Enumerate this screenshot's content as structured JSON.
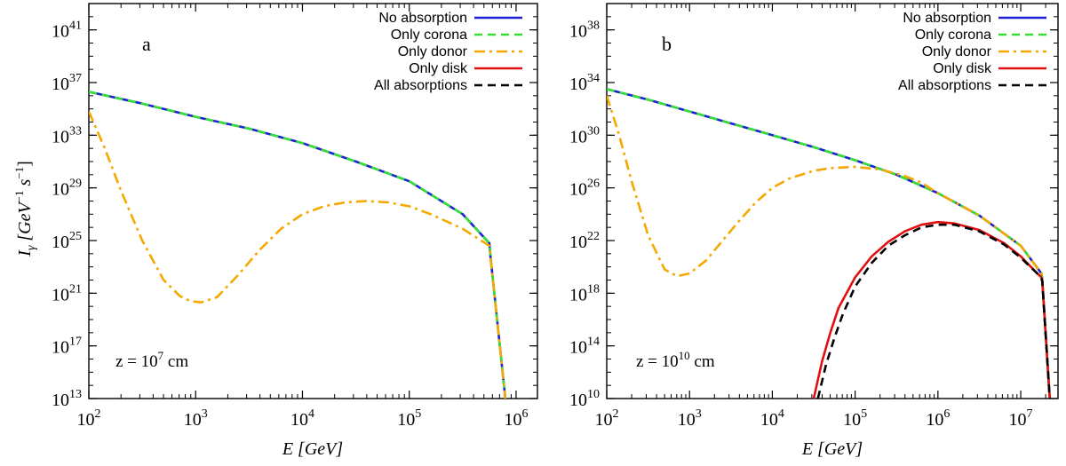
{
  "figure": {
    "ylabel_main": "I",
    "ylabel_sub": "γ",
    "ylabel_units": "[GeV",
    "ylabel_units_exp": "−1",
    "ylabel_s": "s",
    "ylabel_s_exp": "−1",
    "ylabel_close": "]",
    "xlabel_main": "E",
    "xlabel_units": "[GeV]"
  },
  "legend": {
    "items": [
      "No absorption",
      "Only corona",
      "Only donor",
      "Only disk",
      "All absorptions"
    ]
  },
  "colors": {
    "no_absorption": "#1f1fd6",
    "only_corona": "#33e033",
    "only_donor": "#f5a800",
    "only_disk": "#e01010",
    "all_absorptions": "#000000"
  },
  "chart_data": [
    {
      "type": "line",
      "panel_label": "a",
      "annotation": {
        "prefix": "z = 10",
        "exp": "7",
        "unit": " cm"
      },
      "xscale": "log",
      "yscale": "log",
      "xlim_log10": [
        2,
        6.2
      ],
      "ylim_log10": [
        13,
        43
      ],
      "xtick_exponents": [
        "2",
        "3",
        "4",
        "5",
        "6"
      ],
      "ytick_exponents": [
        "13",
        "17",
        "21",
        "25",
        "29",
        "33",
        "37",
        "41"
      ],
      "legend_position": "top-right",
      "series": [
        {
          "name": "No absorption",
          "color": "#1f1fd6",
          "dash": "solid",
          "x_log10": [
            2.0,
            2.5,
            3.0,
            3.5,
            4.0,
            4.5,
            5.0,
            5.5,
            5.75,
            5.76,
            5.9
          ],
          "y_log10": [
            36.3,
            35.4,
            34.4,
            33.5,
            32.4,
            31.0,
            29.5,
            27.0,
            24.8,
            23.8,
            13.0
          ]
        },
        {
          "name": "Only corona",
          "color": "#33e033",
          "dash": "dashed",
          "x_log10": [
            2.0,
            2.5,
            3.0,
            3.5,
            4.0,
            4.5,
            5.0,
            5.5,
            5.75,
            5.76,
            5.9
          ],
          "y_log10": [
            36.3,
            35.4,
            34.4,
            33.5,
            32.4,
            31.0,
            29.5,
            27.0,
            24.8,
            23.8,
            13.0
          ]
        },
        {
          "name": "Only donor",
          "color": "#f5a800",
          "dash": "dashdot",
          "x_log10": [
            2.0,
            2.15,
            2.3,
            2.5,
            2.7,
            2.85,
            2.95,
            3.05,
            3.2,
            3.4,
            3.6,
            3.8,
            4.0,
            4.2,
            4.4,
            4.6,
            4.8,
            5.0,
            5.2,
            5.5,
            5.75,
            5.76,
            5.9
          ],
          "y_log10": [
            34.8,
            32.0,
            28.8,
            25.0,
            22.0,
            20.8,
            20.4,
            20.3,
            20.7,
            22.4,
            24.3,
            25.9,
            27.0,
            27.6,
            27.9,
            28.0,
            27.9,
            27.6,
            27.0,
            25.9,
            24.6,
            23.8,
            13.0
          ]
        }
      ]
    },
    {
      "type": "line",
      "panel_label": "b",
      "annotation": {
        "prefix": "z = 10",
        "exp": "10",
        "unit": " cm"
      },
      "xscale": "log",
      "yscale": "log",
      "xlim_log10": [
        2,
        7.45
      ],
      "ylim_log10": [
        10,
        40
      ],
      "xtick_exponents": [
        "2",
        "3",
        "4",
        "5",
        "6",
        "7"
      ],
      "ytick_exponents": [
        "10",
        "14",
        "18",
        "22",
        "26",
        "30",
        "34",
        "38"
      ],
      "legend_position": "top-right",
      "series": [
        {
          "name": "No absorption",
          "color": "#1f1fd6",
          "dash": "solid",
          "x_log10": [
            2.0,
            2.5,
            3.0,
            3.5,
            4.0,
            4.5,
            5.0,
            5.5,
            6.0,
            6.5,
            7.0,
            7.25,
            7.26,
            7.35
          ],
          "y_log10": [
            33.5,
            32.7,
            31.8,
            30.9,
            30.0,
            29.1,
            28.1,
            27.0,
            25.6,
            23.9,
            21.6,
            19.5,
            19.0,
            10.0
          ]
        },
        {
          "name": "Only corona",
          "color": "#33e033",
          "dash": "dashed",
          "x_log10": [
            2.0,
            2.5,
            3.0,
            3.5,
            4.0,
            4.5,
            5.0,
            5.5,
            6.0,
            6.5,
            7.0,
            7.25,
            7.26,
            7.35
          ],
          "y_log10": [
            33.5,
            32.7,
            31.8,
            30.9,
            30.0,
            29.1,
            28.1,
            27.0,
            25.6,
            23.9,
            21.6,
            19.5,
            19.0,
            10.0
          ]
        },
        {
          "name": "Only donor",
          "color": "#f5a800",
          "dash": "dashdot",
          "x_log10": [
            2.0,
            2.15,
            2.3,
            2.5,
            2.7,
            2.85,
            3.0,
            3.2,
            3.4,
            3.6,
            3.8,
            4.0,
            4.2,
            4.5,
            4.7,
            5.0,
            5.3,
            5.6,
            5.8,
            6.0,
            6.5,
            7.0,
            7.25,
            7.26,
            7.35
          ],
          "y_log10": [
            33.0,
            30.0,
            26.5,
            22.4,
            19.8,
            19.3,
            19.5,
            20.5,
            22.0,
            23.5,
            24.9,
            26.0,
            26.7,
            27.3,
            27.5,
            27.6,
            27.4,
            26.9,
            26.4,
            25.6,
            23.9,
            21.6,
            19.5,
            19.0,
            10.0
          ]
        },
        {
          "name": "Only disk",
          "color": "#e01010",
          "dash": "solid",
          "x_log10": [
            4.5,
            4.6,
            4.7,
            4.8,
            5.0,
            5.2,
            5.4,
            5.6,
            5.8,
            6.0,
            6.2,
            6.5,
            6.8,
            7.0,
            7.2,
            7.25,
            7.26,
            7.35
          ],
          "y_log10": [
            10.0,
            12.8,
            15.0,
            16.9,
            19.2,
            20.8,
            21.9,
            22.7,
            23.2,
            23.4,
            23.3,
            22.8,
            21.8,
            20.8,
            19.5,
            19.2,
            18.9,
            10.0
          ]
        },
        {
          "name": "All absorptions",
          "color": "#000000",
          "dash": "dashed",
          "x_log10": [
            4.55,
            4.65,
            4.75,
            4.85,
            5.0,
            5.2,
            5.4,
            5.6,
            5.8,
            6.0,
            6.2,
            6.5,
            6.8,
            7.0,
            7.2,
            7.25,
            7.26,
            7.35
          ],
          "y_log10": [
            10.0,
            12.6,
            14.6,
            16.4,
            18.5,
            20.3,
            21.6,
            22.4,
            23.0,
            23.2,
            23.2,
            22.7,
            21.7,
            20.7,
            19.5,
            19.1,
            18.9,
            10.0
          ]
        }
      ]
    }
  ]
}
